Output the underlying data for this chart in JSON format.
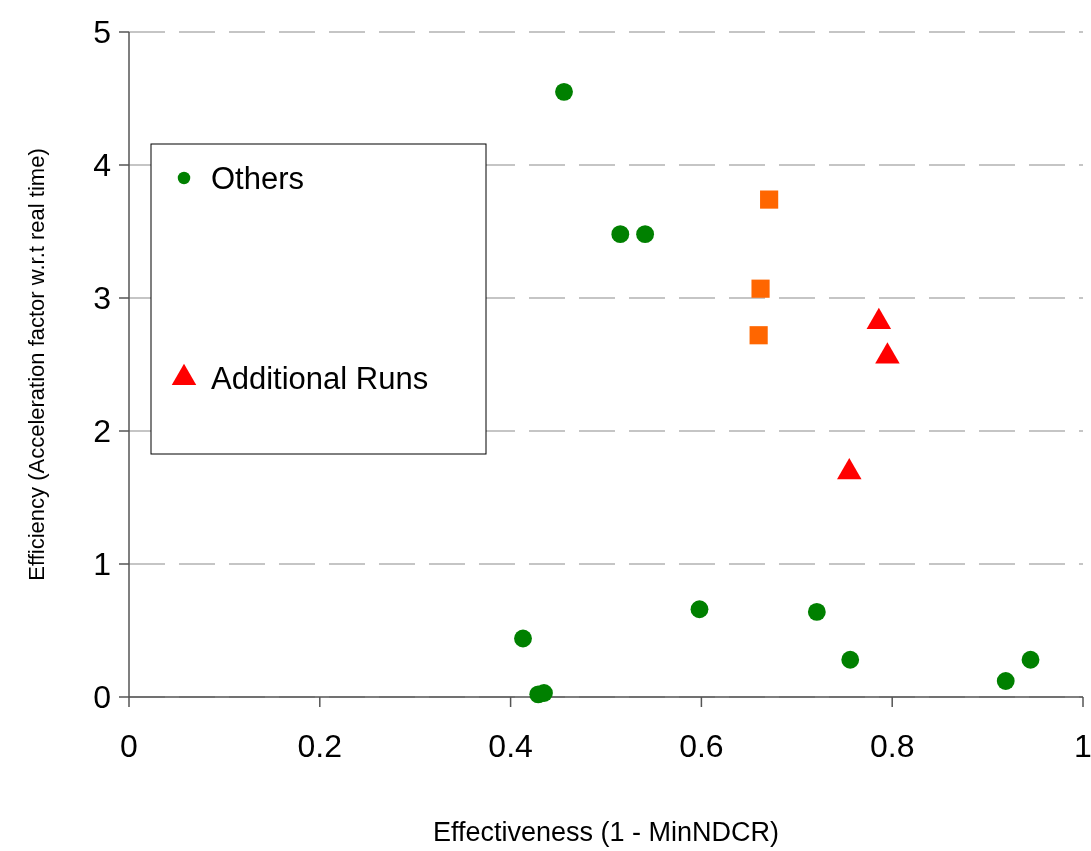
{
  "chart_data": {
    "type": "scatter",
    "xlabel": "Effectiveness (1 - MinNDCR)",
    "ylabel": "Efficiency (Acceleration factor w.r.t real time)",
    "xlim": [
      0,
      1
    ],
    "xticks": [
      0,
      0.2,
      0.4,
      0.6,
      0.8,
      1
    ],
    "ylim": [
      0,
      5
    ],
    "yticks": [
      0,
      1,
      2,
      3,
      4,
      5
    ],
    "grid": "y",
    "legend": "top left",
    "series": [
      {
        "name": "Others",
        "color": "#008000",
        "marker": "circle",
        "x": [
          0.456,
          0.515,
          0.541,
          0.413,
          0.429,
          0.435,
          0.598,
          0.721,
          0.756,
          0.919,
          0.945
        ],
        "values": [
          4.55,
          3.48,
          3.48,
          0.44,
          0.02,
          0.03,
          0.66,
          0.64,
          0.28,
          0.12,
          0.28
        ]
      },
      {
        "color": "#ff6600",
        "marker": "square",
        "x": [
          0.671,
          0.662,
          0.66
        ],
        "values": [
          3.74,
          3.07,
          2.72
        ]
      },
      {
        "name": "Additional Runs",
        "color": "#ff0000",
        "marker": "triangle",
        "x": [
          0.786,
          0.795,
          0.755
        ],
        "values": [
          2.82,
          2.56,
          1.69
        ]
      }
    ]
  }
}
